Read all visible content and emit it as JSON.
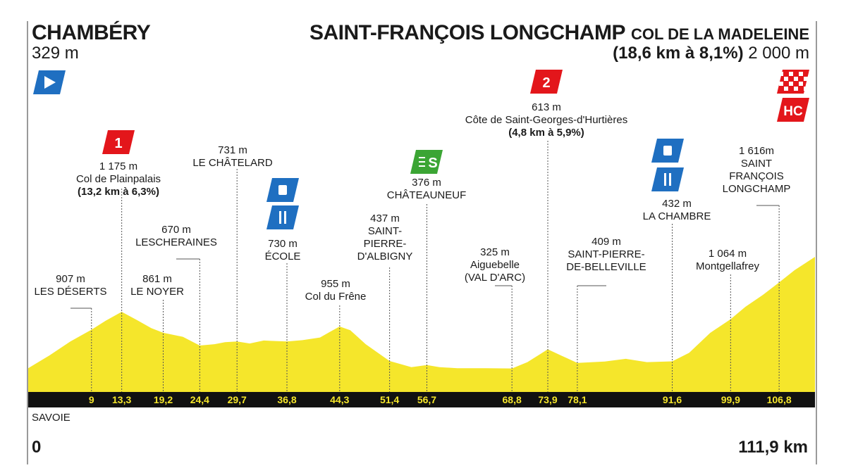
{
  "start": {
    "name": "CHAMBÉRY",
    "altitude": "329 m"
  },
  "finish": {
    "name": "SAINT-FRANÇOIS LONGCHAMP",
    "col": "COL DE LA MADELEINE",
    "climb": "(18,6 km à 8,1%)",
    "altitude": "2 000 m"
  },
  "region": "SAVOIE",
  "distance": {
    "start": "0",
    "end": "111,9 km"
  },
  "colors": {
    "profile_fill": "#f5e62b",
    "profile_stroke": "#d8c400",
    "kom": "#e3161b",
    "feed": "#1f6fc1",
    "sprint": "#3ba534",
    "axis_bar": "#111111",
    "axis_text": "#f5e62b"
  },
  "waypoints": [
    {
      "km": "9",
      "alt": "907 m",
      "name": "LES DÉSERTS"
    },
    {
      "km": "13,3",
      "alt": "1 175 m",
      "name": "Col de Plainpalais",
      "climb": "(13,2 km à 6,3%)",
      "category": "1"
    },
    {
      "km": "19,2",
      "alt": "861 m",
      "name": "LE NOYER"
    },
    {
      "km": "24,4",
      "alt": "670 m",
      "name": "LESCHERAINES"
    },
    {
      "km": "29,7",
      "alt": "731 m",
      "name": "LE CHÂTELARD"
    },
    {
      "km": "36,8",
      "alt": "730 m",
      "name": "ÉCOLE",
      "icons": [
        "feed-icon",
        "food-icon"
      ]
    },
    {
      "km": "44,3",
      "alt": "955 m",
      "name": "Col du Frêne"
    },
    {
      "km": "51,4",
      "alt": "437 m",
      "name": "SAINT-\nPIERRE-\nD'ALBIGNY"
    },
    {
      "km": "56,7",
      "alt": "376 m",
      "name": "CHÂTEAUNEUF",
      "category": "S"
    },
    {
      "km": "68,8",
      "alt": "325 m",
      "name": "Aiguebelle\n(VAL D'ARC)"
    },
    {
      "km": "73,9",
      "alt": "613 m",
      "name": "Côte de Saint-Georges-d'Hurtières",
      "climb": "(4,8 km à 5,9%)",
      "category": "2"
    },
    {
      "km": "78,1",
      "alt": "409 m",
      "name": "SAINT-PIERRE-\nDE-BELLEVILLE"
    },
    {
      "km": "91,6",
      "alt": "432 m",
      "name": "LA CHAMBRE",
      "icons": [
        "feed-icon",
        "food-icon"
      ]
    },
    {
      "km": "99,9",
      "alt": "1 064 m",
      "name": "Montgellafrey"
    },
    {
      "km": "106,8",
      "alt": "1 616m",
      "name": "SAINT\nFRANÇOIS\nLONGCHAMP"
    }
  ],
  "markers": {
    "kom1": "1",
    "kom2": "2",
    "hc": "HC",
    "sprint": "S"
  },
  "chart_data": {
    "type": "area",
    "x_unit": "km",
    "y_unit": "m",
    "xlim": [
      0,
      111.9
    ],
    "x": [
      0,
      9,
      13.3,
      19.2,
      24.4,
      29.7,
      36.8,
      44.3,
      51.4,
      56.7,
      68.8,
      73.9,
      78.1,
      91.6,
      99.9,
      106.8,
      111.9
    ],
    "alt": [
      329,
      907,
      1175,
      861,
      670,
      731,
      730,
      955,
      437,
      376,
      325,
      613,
      409,
      432,
      1064,
      1616,
      2000
    ]
  }
}
